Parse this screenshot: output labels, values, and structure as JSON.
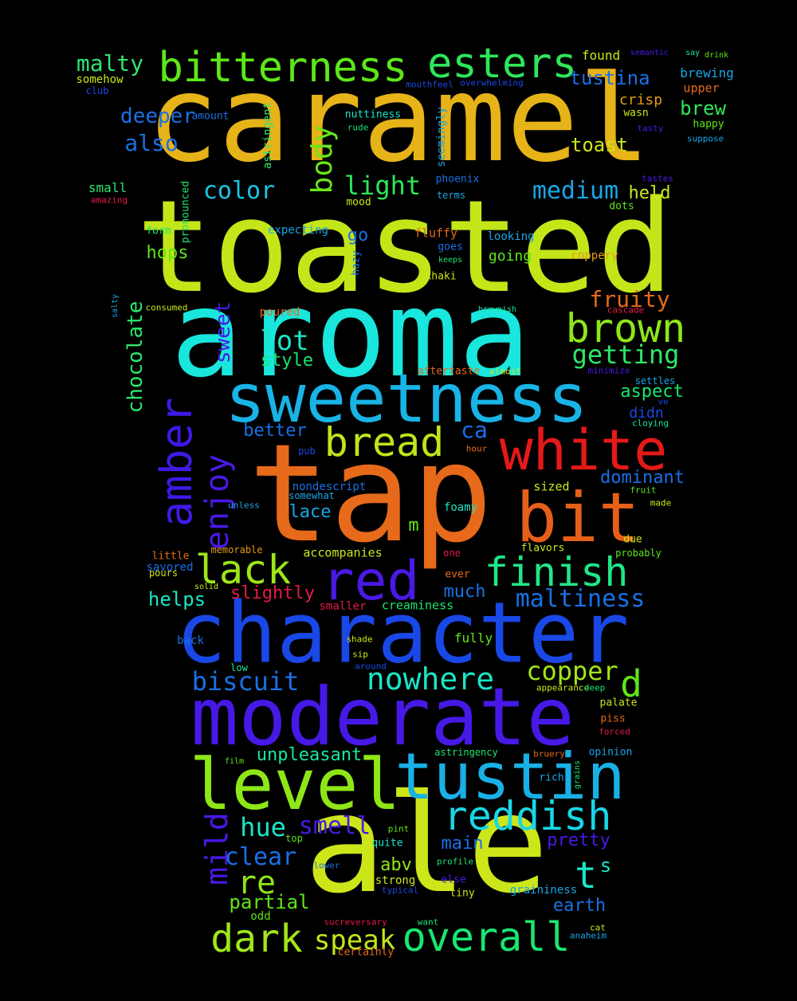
{
  "background": "#000000",
  "words": [
    {
      "text": "caramel",
      "color": "#e6b319"
    },
    {
      "text": "toasted",
      "color": "#c3e619"
    },
    {
      "text": "aroma",
      "color": "#19e6dc"
    },
    {
      "text": "tap",
      "color": "#e66a19"
    },
    {
      "text": "ale",
      "color": "#cde619"
    },
    {
      "text": "character",
      "color": "#1948e6"
    },
    {
      "text": "moderate",
      "color": "#4619e6"
    },
    {
      "text": "sweetness",
      "color": "#19b3e6"
    },
    {
      "text": "level",
      "color": "#8ee619"
    },
    {
      "text": "tustin",
      "color": "#19b0e6"
    },
    {
      "text": "white",
      "color": "#e61919"
    },
    {
      "text": "bit",
      "color": "#e65f19"
    },
    {
      "text": "red",
      "color": "#4a19e6"
    },
    {
      "text": "bitterness",
      "color": "#5ee619"
    },
    {
      "text": "esters",
      "color": "#2ee65a"
    },
    {
      "text": "amber",
      "color": "#4019e6"
    },
    {
      "text": "brown",
      "color": "#8ee619"
    },
    {
      "text": "bread",
      "color": "#bfe619"
    },
    {
      "text": "finish",
      "color": "#1fe687"
    },
    {
      "text": "lack",
      "color": "#9ee619"
    },
    {
      "text": "reddish",
      "color": "#19d6e6"
    },
    {
      "text": "overall",
      "color": "#19e670"
    },
    {
      "text": "dark",
      "color": "#a2e619"
    },
    {
      "text": "enjoy",
      "color": "#4a19e6"
    },
    {
      "text": "mild",
      "color": "#4a19e6"
    },
    {
      "text": "nowhere",
      "color": "#19e6c6"
    },
    {
      "text": "maltiness",
      "color": "#1970e6"
    },
    {
      "text": "getting",
      "color": "#2ee66a"
    },
    {
      "text": "body",
      "color": "#6be619"
    },
    {
      "text": "biscuit",
      "color": "#1970e6"
    },
    {
      "text": "copper",
      "color": "#a2e619"
    },
    {
      "text": "speak",
      "color": "#c3e619"
    },
    {
      "text": "re",
      "color": "#8ee619"
    },
    {
      "text": "d",
      "color": "#5ee619"
    },
    {
      "text": "t",
      "color": "#19e6c6"
    },
    {
      "text": "s",
      "color": "#19e6c6"
    },
    {
      "text": "medium",
      "color": "#19a6e6"
    },
    {
      "text": "color",
      "color": "#19c6e6"
    },
    {
      "text": "light",
      "color": "#2ee65a"
    },
    {
      "text": "malty",
      "color": "#2ee670"
    },
    {
      "text": "deeper",
      "color": "#1970e6"
    },
    {
      "text": "also",
      "color": "#1970e6"
    },
    {
      "text": "tustina",
      "color": "#1970e6"
    },
    {
      "text": "brew",
      "color": "#2ee65a"
    },
    {
      "text": "toast",
      "color": "#cde619"
    },
    {
      "text": "fruity",
      "color": "#e66a19"
    },
    {
      "text": "chocolate",
      "color": "#2ee66a"
    },
    {
      "text": "sweet",
      "color": "#4a19e6"
    },
    {
      "text": "lot",
      "color": "#19e6c6"
    },
    {
      "text": "style",
      "color": "#19e670"
    },
    {
      "text": "ca",
      "color": "#1970e6"
    },
    {
      "text": "smell",
      "color": "#4a19e6"
    },
    {
      "text": "hue",
      "color": "#19e6c6"
    },
    {
      "text": "clear",
      "color": "#1970e6"
    },
    {
      "text": "partial",
      "color": "#5ee619"
    },
    {
      "text": "pretty",
      "color": "#4a19e6"
    },
    {
      "text": "main",
      "color": "#1970e6"
    },
    {
      "text": "earth",
      "color": "#1970e6"
    },
    {
      "text": "unpleasant",
      "color": "#19e6a0"
    },
    {
      "text": "helps",
      "color": "#19e6c6"
    },
    {
      "text": "slightly",
      "color": "#e6194a"
    },
    {
      "text": "much",
      "color": "#1970e6"
    },
    {
      "text": "held",
      "color": "#cde619"
    },
    {
      "text": "aspect",
      "color": "#19e670"
    },
    {
      "text": "dominant",
      "color": "#1970e6"
    },
    {
      "text": "didn",
      "color": "#1948e6"
    },
    {
      "text": "better",
      "color": "#1970e6"
    },
    {
      "text": "lace",
      "color": "#19a6e6"
    },
    {
      "text": "hops",
      "color": "#5ee619"
    },
    {
      "text": "go",
      "color": "#1970e6"
    },
    {
      "text": "going",
      "color": "#5ee619"
    },
    {
      "text": "abv",
      "color": "#8ee619"
    },
    {
      "text": "m",
      "color": "#5ee619"
    },
    {
      "text": "crisp",
      "color": "#e69a19"
    },
    {
      "text": "found",
      "color": "#cde619"
    },
    {
      "text": "brewing",
      "color": "#19a6e6"
    },
    {
      "text": "upper",
      "color": "#e66a19"
    },
    {
      "text": "happy",
      "color": "#5ee619"
    },
    {
      "text": "suppose",
      "color": "#19a6e6"
    },
    {
      "text": "somehow",
      "color": "#cde619"
    },
    {
      "text": "club",
      "color": "#1948e6"
    },
    {
      "text": "mouthfeel",
      "color": "#1948e6"
    },
    {
      "text": "overwhelming",
      "color": "#1948e6"
    },
    {
      "text": "semantic",
      "color": "#4a19e6"
    },
    {
      "text": "say",
      "color": "#19e6a0"
    },
    {
      "text": "drink",
      "color": "#5ee619"
    },
    {
      "text": "amount",
      "color": "#1970e6"
    },
    {
      "text": "nuttiness",
      "color": "#19e6c6"
    },
    {
      "text": "rude",
      "color": "#19e670"
    },
    {
      "text": "astringent",
      "color": "#2ee66a"
    },
    {
      "text": "seemingly",
      "color": "#19a6e6"
    },
    {
      "text": "wasn",
      "color": "#cde619"
    },
    {
      "text": "tasty",
      "color": "#4a19e6"
    },
    {
      "text": "tastes",
      "color": "#4a19e6"
    },
    {
      "text": "phoenix",
      "color": "#1970e6"
    },
    {
      "text": "terms",
      "color": "#19a6e6"
    },
    {
      "text": "mood",
      "color": "#cde619"
    },
    {
      "text": "dots",
      "color": "#5ee619"
    },
    {
      "text": "small",
      "color": "#2ee66a"
    },
    {
      "text": "amazing",
      "color": "#e6194a"
    },
    {
      "text": "pronounced",
      "color": "#19e670"
    },
    {
      "text": "form",
      "color": "#19e670"
    },
    {
      "text": "expecting",
      "color": "#19a6e6"
    },
    {
      "text": "fluffy",
      "color": "#e66a19"
    },
    {
      "text": "goes",
      "color": "#1970e6"
    },
    {
      "text": "keeps",
      "color": "#19e670"
    },
    {
      "text": "looking",
      "color": "#19a6e6"
    },
    {
      "text": "coppery",
      "color": "#e69a19"
    },
    {
      "text": "hazy",
      "color": "#1970e6"
    },
    {
      "text": "khaki",
      "color": "#cde619"
    },
    {
      "text": "salty",
      "color": "#19a6e6"
    },
    {
      "text": "consumed",
      "color": "#cde619"
    },
    {
      "text": "poured",
      "color": "#e66a19"
    },
    {
      "text": "brownish",
      "color": "#19e6a0"
    },
    {
      "text": "cascade",
      "color": "#e6194a"
    },
    {
      "text": "aftertaste",
      "color": "#e66a19"
    },
    {
      "text": "almost",
      "color": "#cde619"
    },
    {
      "text": "minimize",
      "color": "#4a19e6"
    },
    {
      "text": "settles",
      "color": "#19a6e6"
    },
    {
      "text": "ve",
      "color": "#1948e6"
    },
    {
      "text": "cloying",
      "color": "#19e6a0"
    },
    {
      "text": "pub",
      "color": "#1948e6"
    },
    {
      "text": "hour",
      "color": "#e66a19"
    },
    {
      "text": "sized",
      "color": "#cde619"
    },
    {
      "text": "nondescript",
      "color": "#1970e6"
    },
    {
      "text": "somewhat",
      "color": "#19a6e6"
    },
    {
      "text": "unless",
      "color": "#19a6e6"
    },
    {
      "text": "foamy",
      "color": "#19e6c6"
    },
    {
      "text": "fruit",
      "color": "#5ee619"
    },
    {
      "text": "made",
      "color": "#cde619"
    },
    {
      "text": "memorable",
      "color": "#e69a19"
    },
    {
      "text": "little",
      "color": "#e66a19"
    },
    {
      "text": "savored",
      "color": "#1970e6"
    },
    {
      "text": "pours",
      "color": "#cde619"
    },
    {
      "text": "accompanies",
      "color": "#cde619"
    },
    {
      "text": "one",
      "color": "#e6194a"
    },
    {
      "text": "flavors",
      "color": "#cde619"
    },
    {
      "text": "probably",
      "color": "#5ee619"
    },
    {
      "text": "due",
      "color": "#cde619"
    },
    {
      "text": "ever",
      "color": "#e66a19"
    },
    {
      "text": "solid",
      "color": "#cde619"
    },
    {
      "text": "smaller",
      "color": "#e6194a"
    },
    {
      "text": "creaminess",
      "color": "#19e670"
    },
    {
      "text": "back",
      "color": "#1970e6"
    },
    {
      "text": "shade",
      "color": "#cde619"
    },
    {
      "text": "fully",
      "color": "#5ee619"
    },
    {
      "text": "sip",
      "color": "#cde619"
    },
    {
      "text": "around",
      "color": "#1948e6"
    },
    {
      "text": "low",
      "color": "#19e6a0"
    },
    {
      "text": "appearance",
      "color": "#cde619"
    },
    {
      "text": "deep",
      "color": "#19e670"
    },
    {
      "text": "palate",
      "color": "#cde619"
    },
    {
      "text": "piss",
      "color": "#e66a19"
    },
    {
      "text": "forced",
      "color": "#e6194a"
    },
    {
      "text": "astringency",
      "color": "#19e670"
    },
    {
      "text": "bruery",
      "color": "#e66a19"
    },
    {
      "text": "opinion",
      "color": "#19a6e6"
    },
    {
      "text": "film",
      "color": "#5ee619"
    },
    {
      "text": "rich",
      "color": "#19a6e6"
    },
    {
      "text": "grains",
      "color": "#19e670"
    },
    {
      "text": "top",
      "color": "#5ee619"
    },
    {
      "text": "pint",
      "color": "#5ee619"
    },
    {
      "text": "quite",
      "color": "#19e6c6"
    },
    {
      "text": "profile",
      "color": "#19e670"
    },
    {
      "text": "lower",
      "color": "#1970e6"
    },
    {
      "text": "strong",
      "color": "#cde619"
    },
    {
      "text": "else",
      "color": "#4a19e6"
    },
    {
      "text": "typical",
      "color": "#1948e6"
    },
    {
      "text": "tiny",
      "color": "#cde619"
    },
    {
      "text": "graininess",
      "color": "#19a6e6"
    },
    {
      "text": "odd",
      "color": "#5ee619"
    },
    {
      "text": "sucreversary",
      "color": "#e6194a"
    },
    {
      "text": "want",
      "color": "#19e670"
    },
    {
      "text": "certainly",
      "color": "#e66a19"
    },
    {
      "text": "cat",
      "color": "#cde619"
    },
    {
      "text": "anaheim",
      "color": "#19a6e6"
    }
  ]
}
